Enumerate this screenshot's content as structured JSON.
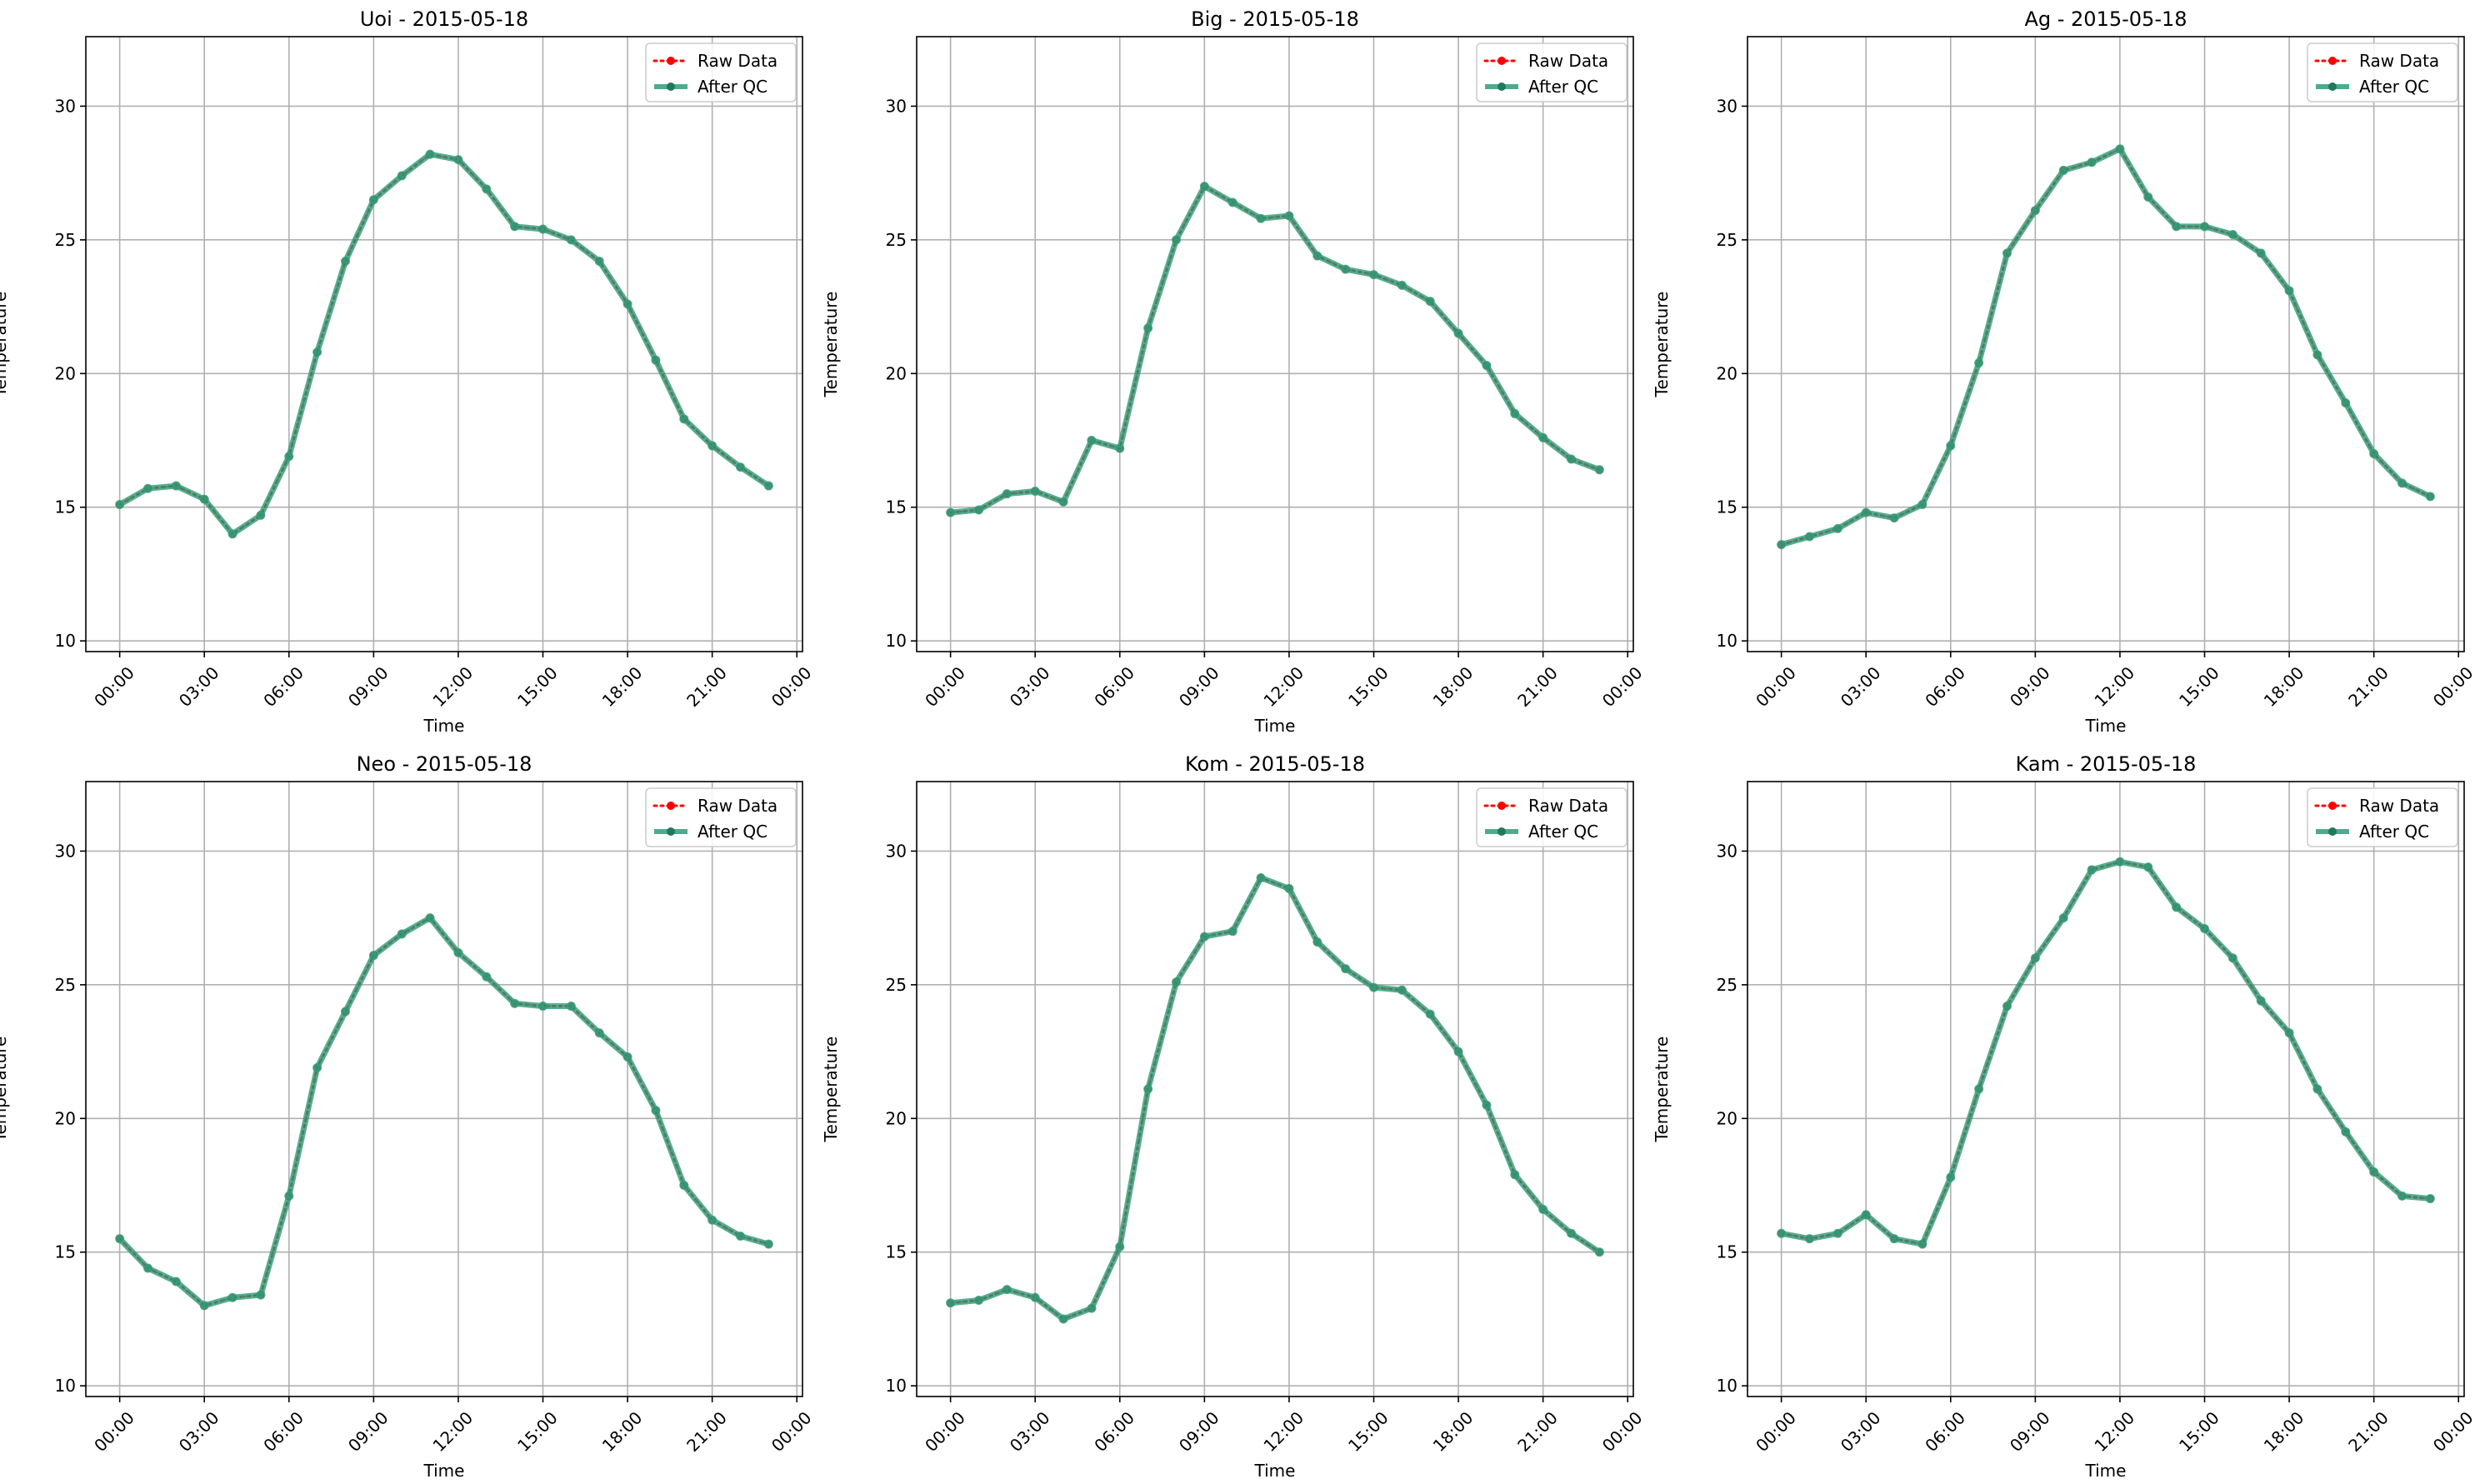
{
  "figure": {
    "background": "#ffffff",
    "grid_color": "#b0b0b0"
  },
  "series_styles": {
    "raw": {
      "name": "Raw Data",
      "color": "#ff0000",
      "style": "dotted",
      "marker": "circle"
    },
    "qc": {
      "name": "After QC",
      "color": "#2e9e7a",
      "style": "solid",
      "marker": "circle"
    }
  },
  "chart_data": [
    {
      "type": "line",
      "title": "Uoi - 2015-05-18",
      "xlabel": "Time",
      "ylabel": "Temperature",
      "xlim": [
        -1.2,
        24.2
      ],
      "ylim": [
        9.6,
        32.6
      ],
      "xticks": [
        0,
        3,
        6,
        9,
        12,
        15,
        18,
        21,
        24
      ],
      "xtick_labels": [
        "00:00",
        "03:00",
        "06:00",
        "09:00",
        "12:00",
        "15:00",
        "18:00",
        "21:00",
        "00:00"
      ],
      "yticks": [
        10,
        15,
        20,
        25,
        30
      ],
      "grid": true,
      "legend": "upper right",
      "x": [
        0,
        1,
        2,
        3,
        4,
        5,
        6,
        7,
        8,
        9,
        10,
        11,
        12,
        13,
        14,
        15,
        16,
        17,
        18,
        19,
        20,
        21,
        22,
        23
      ],
      "series": [
        {
          "name": "Raw Data",
          "values": [
            15.1,
            15.7,
            15.8,
            15.3,
            14.0,
            14.7,
            16.9,
            20.8,
            24.2,
            26.5,
            27.4,
            28.2,
            28.0,
            26.9,
            25.5,
            25.4,
            25.0,
            24.2,
            22.6,
            20.5,
            18.3,
            17.3,
            16.5,
            15.8
          ]
        },
        {
          "name": "After QC",
          "values": [
            15.1,
            15.7,
            15.8,
            15.3,
            14.0,
            14.7,
            16.9,
            20.8,
            24.2,
            26.5,
            27.4,
            28.2,
            28.0,
            26.9,
            25.5,
            25.4,
            25.0,
            24.2,
            22.6,
            20.5,
            18.3,
            17.3,
            16.5,
            15.8
          ]
        }
      ]
    },
    {
      "type": "line",
      "title": "Big - 2015-05-18",
      "xlabel": "Time",
      "ylabel": "Temperature",
      "xlim": [
        -1.2,
        24.2
      ],
      "ylim": [
        9.6,
        32.6
      ],
      "xticks": [
        0,
        3,
        6,
        9,
        12,
        15,
        18,
        21,
        24
      ],
      "xtick_labels": [
        "00:00",
        "03:00",
        "06:00",
        "09:00",
        "12:00",
        "15:00",
        "18:00",
        "21:00",
        "00:00"
      ],
      "yticks": [
        10,
        15,
        20,
        25,
        30
      ],
      "grid": true,
      "legend": "upper right",
      "x": [
        0,
        1,
        2,
        3,
        4,
        5,
        6,
        7,
        8,
        9,
        10,
        11,
        12,
        13,
        14,
        15,
        16,
        17,
        18,
        19,
        20,
        21,
        22,
        23
      ],
      "series": [
        {
          "name": "Raw Data",
          "values": [
            14.8,
            14.9,
            15.5,
            15.6,
            15.2,
            17.5,
            17.2,
            21.7,
            25.0,
            27.0,
            26.4,
            25.8,
            25.9,
            24.4,
            23.9,
            23.7,
            23.3,
            22.7,
            21.5,
            20.3,
            18.5,
            17.6,
            16.8,
            16.4
          ]
        },
        {
          "name": "After QC",
          "values": [
            14.8,
            14.9,
            15.5,
            15.6,
            15.2,
            17.5,
            17.2,
            21.7,
            25.0,
            27.0,
            26.4,
            25.8,
            25.9,
            24.4,
            23.9,
            23.7,
            23.3,
            22.7,
            21.5,
            20.3,
            18.5,
            17.6,
            16.8,
            16.4
          ]
        }
      ]
    },
    {
      "type": "line",
      "title": "Ag - 2015-05-18",
      "xlabel": "Time",
      "ylabel": "Temperature",
      "xlim": [
        -1.2,
        24.2
      ],
      "ylim": [
        9.6,
        32.6
      ],
      "xticks": [
        0,
        3,
        6,
        9,
        12,
        15,
        18,
        21,
        24
      ],
      "xtick_labels": [
        "00:00",
        "03:00",
        "06:00",
        "09:00",
        "12:00",
        "15:00",
        "18:00",
        "21:00",
        "00:00"
      ],
      "yticks": [
        10,
        15,
        20,
        25,
        30
      ],
      "grid": true,
      "legend": "upper right",
      "x": [
        0,
        1,
        2,
        3,
        4,
        5,
        6,
        7,
        8,
        9,
        10,
        11,
        12,
        13,
        14,
        15,
        16,
        17,
        18,
        19,
        20,
        21,
        22,
        23
      ],
      "series": [
        {
          "name": "Raw Data",
          "values": [
            13.6,
            13.9,
            14.2,
            14.8,
            14.6,
            15.1,
            17.3,
            20.4,
            24.5,
            26.1,
            27.6,
            27.9,
            28.4,
            26.6,
            25.5,
            25.5,
            25.2,
            24.5,
            23.1,
            20.7,
            18.9,
            17.0,
            15.9,
            15.4
          ]
        },
        {
          "name": "After QC",
          "values": [
            13.6,
            13.9,
            14.2,
            14.8,
            14.6,
            15.1,
            17.3,
            20.4,
            24.5,
            26.1,
            27.6,
            27.9,
            28.4,
            26.6,
            25.5,
            25.5,
            25.2,
            24.5,
            23.1,
            20.7,
            18.9,
            17.0,
            15.9,
            15.4
          ]
        }
      ]
    },
    {
      "type": "line",
      "title": "Neo - 2015-05-18",
      "xlabel": "Time",
      "ylabel": "Temperature",
      "xlim": [
        -1.2,
        24.2
      ],
      "ylim": [
        9.6,
        32.6
      ],
      "xticks": [
        0,
        3,
        6,
        9,
        12,
        15,
        18,
        21,
        24
      ],
      "xtick_labels": [
        "00:00",
        "03:00",
        "06:00",
        "09:00",
        "12:00",
        "15:00",
        "18:00",
        "21:00",
        "00:00"
      ],
      "yticks": [
        10,
        15,
        20,
        25,
        30
      ],
      "grid": true,
      "legend": "upper right",
      "x": [
        0,
        1,
        2,
        3,
        4,
        5,
        6,
        7,
        8,
        9,
        10,
        11,
        12,
        13,
        14,
        15,
        16,
        17,
        18,
        19,
        20,
        21,
        22,
        23
      ],
      "series": [
        {
          "name": "Raw Data",
          "values": [
            15.5,
            14.4,
            13.9,
            13.0,
            13.3,
            13.4,
            17.1,
            21.9,
            24.0,
            26.1,
            26.9,
            27.5,
            26.2,
            25.3,
            24.3,
            24.2,
            24.2,
            23.2,
            22.3,
            20.3,
            17.5,
            16.2,
            15.6,
            15.3
          ]
        },
        {
          "name": "After QC",
          "values": [
            15.5,
            14.4,
            13.9,
            13.0,
            13.3,
            13.4,
            17.1,
            21.9,
            24.0,
            26.1,
            26.9,
            27.5,
            26.2,
            25.3,
            24.3,
            24.2,
            24.2,
            23.2,
            22.3,
            20.3,
            17.5,
            16.2,
            15.6,
            15.3
          ]
        }
      ]
    },
    {
      "type": "line",
      "title": "Kom - 2015-05-18",
      "xlabel": "Time",
      "ylabel": "Temperature",
      "xlim": [
        -1.2,
        24.2
      ],
      "ylim": [
        9.6,
        32.6
      ],
      "xticks": [
        0,
        3,
        6,
        9,
        12,
        15,
        18,
        21,
        24
      ],
      "xtick_labels": [
        "00:00",
        "03:00",
        "06:00",
        "09:00",
        "12:00",
        "15:00",
        "18:00",
        "21:00",
        "00:00"
      ],
      "yticks": [
        10,
        15,
        20,
        25,
        30
      ],
      "grid": true,
      "legend": "upper right",
      "x": [
        0,
        1,
        2,
        3,
        4,
        5,
        6,
        7,
        8,
        9,
        10,
        11,
        12,
        13,
        14,
        15,
        16,
        17,
        18,
        19,
        20,
        21,
        22,
        23
      ],
      "series": [
        {
          "name": "Raw Data",
          "values": [
            13.1,
            13.2,
            13.6,
            13.3,
            12.5,
            12.9,
            15.2,
            21.1,
            25.1,
            26.8,
            27.0,
            29.0,
            28.6,
            26.6,
            25.6,
            24.9,
            24.8,
            23.9,
            22.5,
            20.5,
            17.9,
            16.6,
            15.7,
            15.0
          ]
        },
        {
          "name": "After QC",
          "values": [
            13.1,
            13.2,
            13.6,
            13.3,
            12.5,
            12.9,
            15.2,
            21.1,
            25.1,
            26.8,
            27.0,
            29.0,
            28.6,
            26.6,
            25.6,
            24.9,
            24.8,
            23.9,
            22.5,
            20.5,
            17.9,
            16.6,
            15.7,
            15.0
          ]
        }
      ]
    },
    {
      "type": "line",
      "title": "Kam - 2015-05-18",
      "xlabel": "Time",
      "ylabel": "Temperature",
      "xlim": [
        -1.2,
        24.2
      ],
      "ylim": [
        9.6,
        32.6
      ],
      "xticks": [
        0,
        3,
        6,
        9,
        12,
        15,
        18,
        21,
        24
      ],
      "xtick_labels": [
        "00:00",
        "03:00",
        "06:00",
        "09:00",
        "12:00",
        "15:00",
        "18:00",
        "21:00",
        "00:00"
      ],
      "yticks": [
        10,
        15,
        20,
        25,
        30
      ],
      "grid": true,
      "legend": "upper right",
      "x": [
        0,
        1,
        2,
        3,
        4,
        5,
        6,
        7,
        8,
        9,
        10,
        11,
        12,
        13,
        14,
        15,
        16,
        17,
        18,
        19,
        20,
        21,
        22,
        23
      ],
      "series": [
        {
          "name": "Raw Data",
          "values": [
            15.7,
            15.5,
            15.7,
            16.4,
            15.5,
            15.3,
            17.8,
            21.1,
            24.2,
            26.0,
            27.5,
            29.3,
            29.6,
            29.4,
            27.9,
            27.1,
            26.0,
            24.4,
            23.2,
            21.1,
            19.5,
            18.0,
            17.1,
            17.0
          ]
        },
        {
          "name": "After QC",
          "values": [
            15.7,
            15.5,
            15.7,
            16.4,
            15.5,
            15.3,
            17.8,
            21.1,
            24.2,
            26.0,
            27.5,
            29.3,
            29.6,
            29.4,
            27.9,
            27.1,
            26.0,
            24.4,
            23.2,
            21.1,
            19.5,
            18.0,
            17.1,
            17.0
          ]
        }
      ]
    }
  ]
}
